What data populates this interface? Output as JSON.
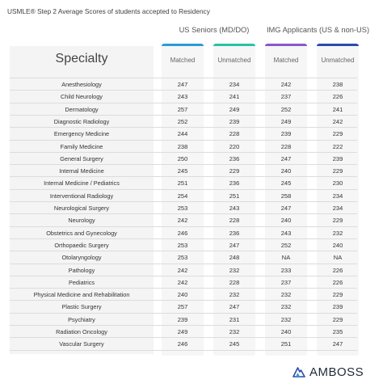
{
  "title": "USMLE® Step 2 Average Scores of students accepted to Residency",
  "groups": {
    "us": "US Seniors (MD/DO)",
    "img": "IMG Applicants (US & non-US)"
  },
  "colors": {
    "us_matched": "#2b9bd6",
    "us_unmatched": "#28c2a5",
    "img_matched": "#8a58c9",
    "img_unmatched": "#2b4cab",
    "logo": "#1f2b3a"
  },
  "logo": {
    "text": "AMBOSS",
    "icon": "amboss-mountain-icon"
  },
  "chart_data": {
    "type": "table",
    "title": "USMLE® Step 2 Average Scores of students accepted to Residency",
    "row_header": "Specialty",
    "columns": [
      {
        "group": "US Seniors (MD/DO)",
        "name": "Matched"
      },
      {
        "group": "US Seniors (MD/DO)",
        "name": "Unmatched"
      },
      {
        "group": "IMG Applicants (US & non-US)",
        "name": "Matched"
      },
      {
        "group": "IMG Applicants (US & non-US)",
        "name": "Unmatched"
      }
    ],
    "rows": [
      {
        "specialty": "Anesthesiology",
        "values": [
          "247",
          "234",
          "242",
          "238"
        ]
      },
      {
        "specialty": "Child Neurology",
        "values": [
          "243",
          "241",
          "237",
          "226"
        ]
      },
      {
        "specialty": "Dermatology",
        "values": [
          "257",
          "249",
          "252",
          "241"
        ]
      },
      {
        "specialty": "Diagnostic Radiology",
        "values": [
          "252",
          "239",
          "249",
          "242"
        ]
      },
      {
        "specialty": "Emergency Medicine",
        "values": [
          "244",
          "228",
          "239",
          "229"
        ]
      },
      {
        "specialty": "Family Medicine",
        "values": [
          "238",
          "220",
          "228",
          "222"
        ]
      },
      {
        "specialty": "General Surgery",
        "values": [
          "250",
          "236",
          "247",
          "239"
        ]
      },
      {
        "specialty": "Internal Medicine",
        "values": [
          "245",
          "229",
          "240",
          "229"
        ]
      },
      {
        "specialty": "Internal Medicine / Pediatrics",
        "values": [
          "251",
          "236",
          "245",
          "230"
        ]
      },
      {
        "specialty": "Interventional Radiology",
        "values": [
          "254",
          "251",
          "258",
          "234"
        ]
      },
      {
        "specialty": "Neurological Surgery",
        "values": [
          "253",
          "243",
          "247",
          "234"
        ]
      },
      {
        "specialty": "Neurology",
        "values": [
          "242",
          "228",
          "240",
          "229"
        ]
      },
      {
        "specialty": "Obstetrics and Gynecology",
        "values": [
          "246",
          "236",
          "243",
          "232"
        ]
      },
      {
        "specialty": "Orthopaedic Surgery",
        "values": [
          "253",
          "247",
          "252",
          "240"
        ]
      },
      {
        "specialty": "Otolaryngology",
        "values": [
          "253",
          "248",
          "NA",
          "NA"
        ]
      },
      {
        "specialty": "Pathology",
        "values": [
          "242",
          "232",
          "233",
          "226"
        ]
      },
      {
        "specialty": "Pediatrics",
        "values": [
          "242",
          "228",
          "237",
          "226"
        ]
      },
      {
        "specialty": "Physical Medicine and Rehabilitation",
        "values": [
          "240",
          "232",
          "232",
          "229"
        ]
      },
      {
        "specialty": "Plastic Surgery",
        "values": [
          "257",
          "247",
          "232",
          "239"
        ]
      },
      {
        "specialty": "Psychiatry",
        "values": [
          "239",
          "231",
          "232",
          "229"
        ]
      },
      {
        "specialty": "Radiation Oncology",
        "values": [
          "249",
          "232",
          "240",
          "235"
        ]
      },
      {
        "specialty": "Vascular Surgery",
        "values": [
          "246",
          "245",
          "251",
          "247"
        ]
      }
    ]
  }
}
